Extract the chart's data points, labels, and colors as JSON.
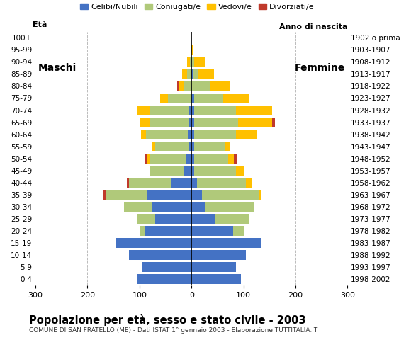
{
  "age_groups": [
    "0-4",
    "5-9",
    "10-14",
    "15-19",
    "20-24",
    "25-29",
    "30-34",
    "35-39",
    "40-44",
    "45-49",
    "50-54",
    "55-59",
    "60-64",
    "65-69",
    "70-74",
    "75-79",
    "80-84",
    "85-89",
    "90-94",
    "95-99",
    "100+"
  ],
  "birth_years": [
    "1998-2002",
    "1993-1997",
    "1988-1992",
    "1983-1987",
    "1978-1982",
    "1973-1977",
    "1968-1972",
    "1963-1967",
    "1958-1962",
    "1953-1957",
    "1948-1952",
    "1943-1947",
    "1938-1942",
    "1933-1937",
    "1928-1932",
    "1923-1927",
    "1918-1922",
    "1913-1917",
    "1908-1912",
    "1903-1907",
    "1902 o prima"
  ],
  "males": {
    "celibinubili": [
      105,
      95,
      120,
      145,
      90,
      70,
      75,
      85,
      40,
      15,
      10,
      5,
      7,
      5,
      5,
      0,
      0,
      0,
      0,
      0,
      0
    ],
    "coniugati": [
      0,
      0,
      0,
      0,
      10,
      35,
      55,
      80,
      80,
      65,
      70,
      65,
      80,
      75,
      75,
      45,
      15,
      8,
      3,
      0,
      0
    ],
    "vedovi": [
      0,
      0,
      0,
      0,
      0,
      0,
      0,
      0,
      0,
      0,
      5,
      5,
      10,
      20,
      25,
      15,
      10,
      10,
      5,
      0,
      0
    ],
    "divorziati": [
      0,
      0,
      0,
      0,
      0,
      0,
      0,
      5,
      5,
      0,
      5,
      0,
      0,
      0,
      0,
      0,
      3,
      0,
      0,
      0,
      0
    ]
  },
  "females": {
    "celibinubili": [
      95,
      85,
      105,
      135,
      80,
      45,
      25,
      20,
      10,
      5,
      5,
      5,
      5,
      5,
      5,
      5,
      0,
      3,
      0,
      0,
      0
    ],
    "coniugate": [
      0,
      0,
      0,
      0,
      20,
      65,
      95,
      110,
      95,
      80,
      65,
      60,
      80,
      85,
      80,
      55,
      35,
      10,
      5,
      0,
      0
    ],
    "vedove": [
      0,
      0,
      0,
      0,
      0,
      0,
      0,
      5,
      10,
      15,
      12,
      10,
      40,
      65,
      70,
      50,
      40,
      30,
      20,
      2,
      0
    ],
    "divorziate": [
      0,
      0,
      0,
      0,
      0,
      0,
      0,
      0,
      0,
      0,
      5,
      0,
      0,
      5,
      0,
      0,
      0,
      0,
      0,
      0,
      0
    ]
  },
  "colors": {
    "celibinubili": "#4472c4",
    "coniugati": "#b0c97a",
    "vedovi": "#ffc000",
    "divorziati": "#c0392b"
  },
  "xlim": 300,
  "title": "Popolazione per età, sesso e stato civile - 2003",
  "subtitle": "COMUNE DI SAN FRATELLO (ME) - Dati ISTAT 1° gennaio 2003 - Elaborazione TUTTITALIA.IT",
  "legend_labels": [
    "Celibi/Nubili",
    "Coniugati/e",
    "Vedovi/e",
    "Divorziati/e"
  ],
  "xlabel_left": "Maschi",
  "xlabel_right": "Femmine",
  "ylabel_left": "Età",
  "ylabel_right": "Anno di nascita",
  "background_color": "#ffffff",
  "grid_color": "#bbbbbb"
}
